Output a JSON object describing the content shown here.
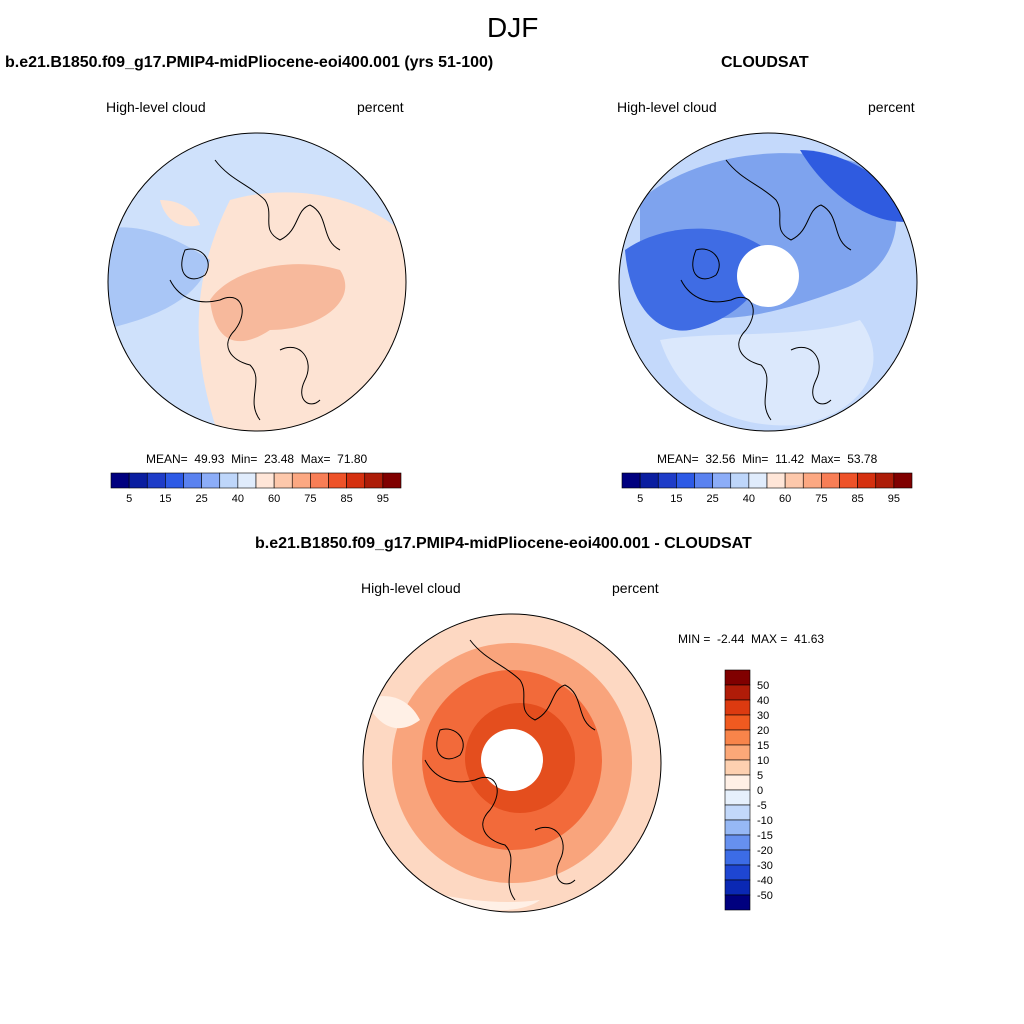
{
  "figure": {
    "title": "DJF"
  },
  "panels": [
    {
      "title": "b.e21.B1850.f09_g17.PMIP4-midPliocene-eoi400.001 (yrs 51-100)",
      "left_label": "High-level cloud",
      "right_label": "percent",
      "stats": {
        "mean_label": "MEAN=",
        "mean": "49.93",
        "min_label": "Min=",
        "min": "23.48",
        "max_label": "Max=",
        "max": "71.80"
      }
    },
    {
      "title": "CLOUDSAT",
      "left_label": "High-level cloud",
      "right_label": "percent",
      "stats": {
        "mean_label": "MEAN=",
        "mean": "32.56",
        "min_label": "Min=",
        "min": "11.42",
        "max_label": "Max=",
        "max": "53.78"
      }
    },
    {
      "title": "b.e21.B1850.f09_g17.PMIP4-midPliocene-eoi400.001 - CLOUDSAT",
      "left_label": "High-level cloud",
      "right_label": "percent",
      "stats": {
        "min_label": "MIN =",
        "min": "-2.44",
        "max_label": "MAX =",
        "max": "41.63"
      }
    }
  ],
  "chart_data": [
    {
      "type": "heatmap",
      "projection": "north-polar-stereographic",
      "title": "b.e21.B1850.f09_g17.PMIP4-midPliocene-eoi400.001 (yrs 51-100)",
      "variable": "High-level cloud",
      "units": "percent",
      "mean": 49.93,
      "min": 23.48,
      "max": 71.8,
      "colorbar": {
        "orientation": "horizontal",
        "colors": [
          "#00007f",
          "#0a1ea0",
          "#1e3cc8",
          "#2d5ae6",
          "#5a82f0",
          "#8cadf8",
          "#bed6fa",
          "#e0ecfc",
          "#ffe6d8",
          "#fdc8ab",
          "#fca882",
          "#f87e56",
          "#ee5228",
          "#d5300f",
          "#ad1c08",
          "#800000"
        ],
        "tick_labels": [
          "5",
          "15",
          "25",
          "40",
          "60",
          "75",
          "85",
          "95"
        ]
      }
    },
    {
      "type": "heatmap",
      "projection": "north-polar-stereographic",
      "title": "CLOUDSAT",
      "variable": "High-level cloud",
      "units": "percent",
      "mean": 32.56,
      "min": 11.42,
      "max": 53.78,
      "colorbar": {
        "orientation": "horizontal",
        "colors": [
          "#00007f",
          "#0a1ea0",
          "#1e3cc8",
          "#2d5ae6",
          "#5a82f0",
          "#8cadf8",
          "#bed6fa",
          "#e0ecfc",
          "#ffe6d8",
          "#fdc8ab",
          "#fca882",
          "#f87e56",
          "#ee5228",
          "#d5300f",
          "#ad1c08",
          "#800000"
        ],
        "tick_labels": [
          "5",
          "15",
          "25",
          "40",
          "60",
          "75",
          "85",
          "95"
        ]
      }
    },
    {
      "type": "heatmap",
      "projection": "north-polar-stereographic",
      "title": "b.e21.B1850.f09_g17.PMIP4-midPliocene-eoi400.001 - CLOUDSAT",
      "variable": "High-level cloud",
      "units": "percent",
      "min": -2.44,
      "max": 41.63,
      "colorbar": {
        "orientation": "vertical",
        "colors": [
          "#800000",
          "#b01c08",
          "#dc3a10",
          "#f05a20",
          "#f8844a",
          "#fca878",
          "#fdd0b0",
          "#fff0e6",
          "#e6f0fc",
          "#c2d8fa",
          "#96b8f5",
          "#6690ef",
          "#3c6ce6",
          "#1e46d2",
          "#0a28b4",
          "#00007f"
        ],
        "tick_labels": [
          "50",
          "40",
          "30",
          "20",
          "15",
          "10",
          "5",
          "0",
          "-5",
          "-10",
          "-15",
          "-20",
          "-30",
          "-40",
          "-50"
        ]
      }
    }
  ]
}
